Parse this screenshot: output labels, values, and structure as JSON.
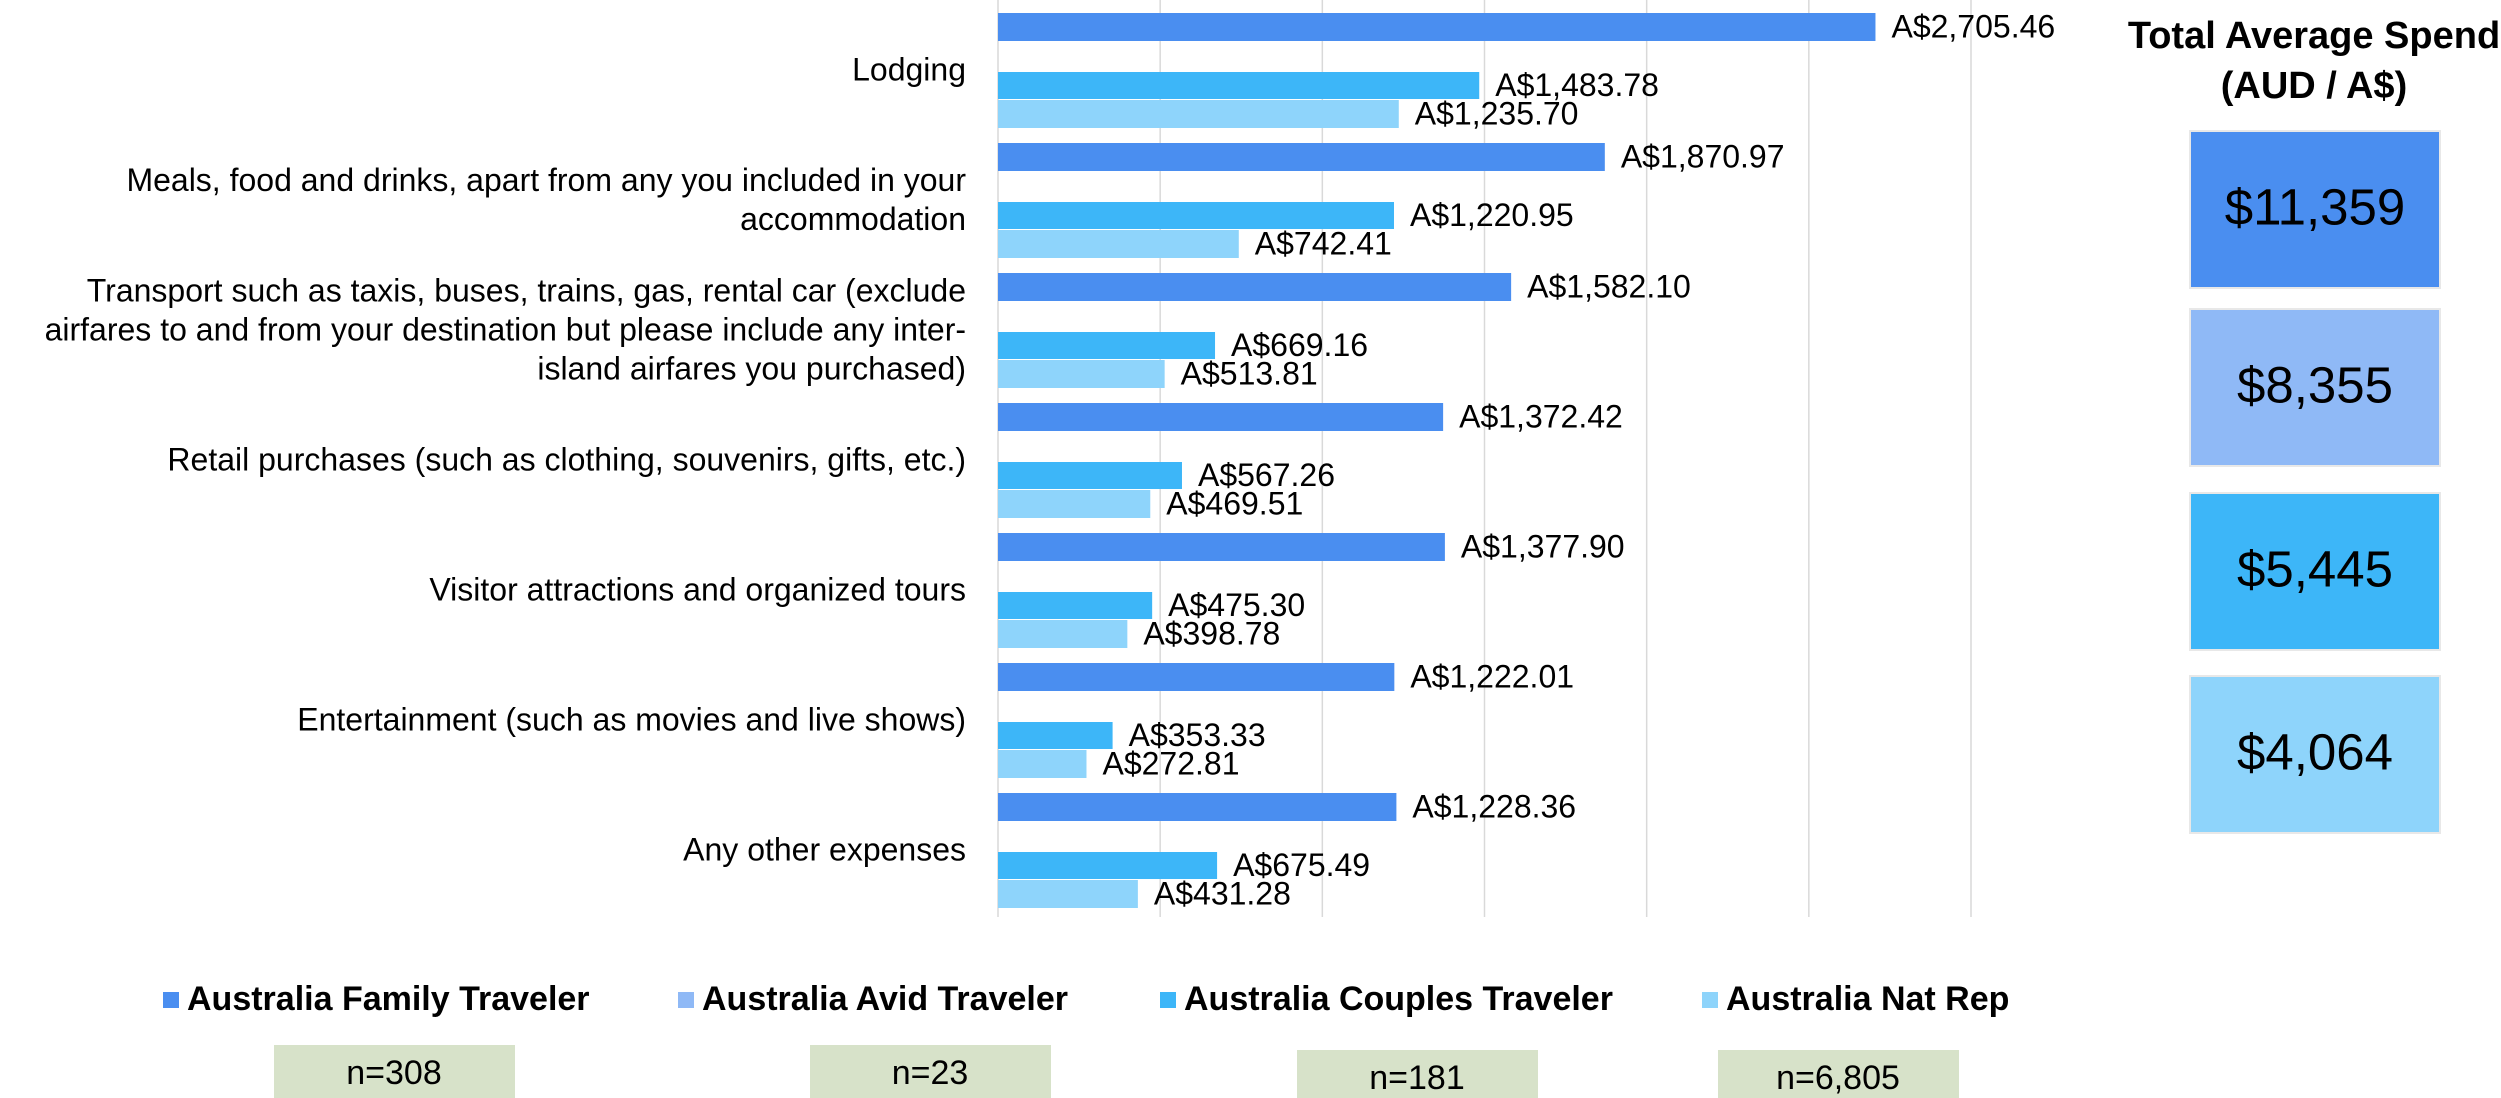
{
  "chart_data": {
    "type": "bar",
    "orientation": "horizontal",
    "categories": [
      "Lodging",
      "Meals, food and drinks, apart from any you included in your accommodation",
      "Transport such as taxis, buses, trains, gas, rental car (exclude airfares to and from your destination but please include any inter-island airfares you purchased)",
      "Retail purchases (such as clothing, souvenirs, gifts, etc.)",
      "Visitor attractions and organized tours",
      "Entertainment (such as movies and live shows)",
      "Any other expenses"
    ],
    "series": [
      {
        "name": "Australia Family Traveler",
        "color": "#4a8ef0",
        "values": [
          2705.46,
          1870.97,
          1582.1,
          1372.42,
          1377.9,
          1222.01,
          1228.36
        ],
        "value_labels": [
          "A$2,705.46",
          "A$1,870.97",
          "A$1,582.10",
          "A$1,372.42",
          "A$1,377.90",
          "A$1,222.01",
          "A$1,228.36"
        ]
      },
      {
        "name": "Australia Avid Traveler",
        "color": "#8fb9f6",
        "values": [
          null,
          null,
          null,
          null,
          null,
          null,
          null
        ]
      },
      {
        "name": "Australia Couples Traveler",
        "color": "#3db6f8",
        "values": [
          1483.78,
          1220.95,
          669.16,
          567.26,
          475.3,
          353.33,
          675.49
        ],
        "value_labels": [
          "A$1,483.78",
          "A$1,220.95",
          "A$669.16",
          "A$567.26",
          "A$475.30",
          "A$353.33",
          "A$675.49"
        ]
      },
      {
        "name": "Australia Nat Rep",
        "color": "#8ed4fb",
        "values": [
          1235.7,
          742.41,
          513.81,
          469.51,
          398.78,
          272.81,
          431.28
        ],
        "value_labels": [
          "A$1,235.70",
          "A$742.41",
          "A$513.81",
          "A$469.51",
          "A$398.78",
          "A$272.81",
          "A$431.28"
        ]
      }
    ],
    "xlim": [
      0,
      3000
    ],
    "xticks": [
      0,
      500,
      1000,
      1500,
      2000,
      2500,
      3000
    ],
    "grid": true,
    "legend": "bottom",
    "totals_title": [
      "Total Average Spend",
      "(AUD / A$)"
    ],
    "totals": [
      "$11,359",
      "$8,355",
      "$5,445",
      "$4,064"
    ],
    "sample_sizes": [
      "n=308",
      "n=23",
      "n=181",
      "n=6,805"
    ]
  }
}
